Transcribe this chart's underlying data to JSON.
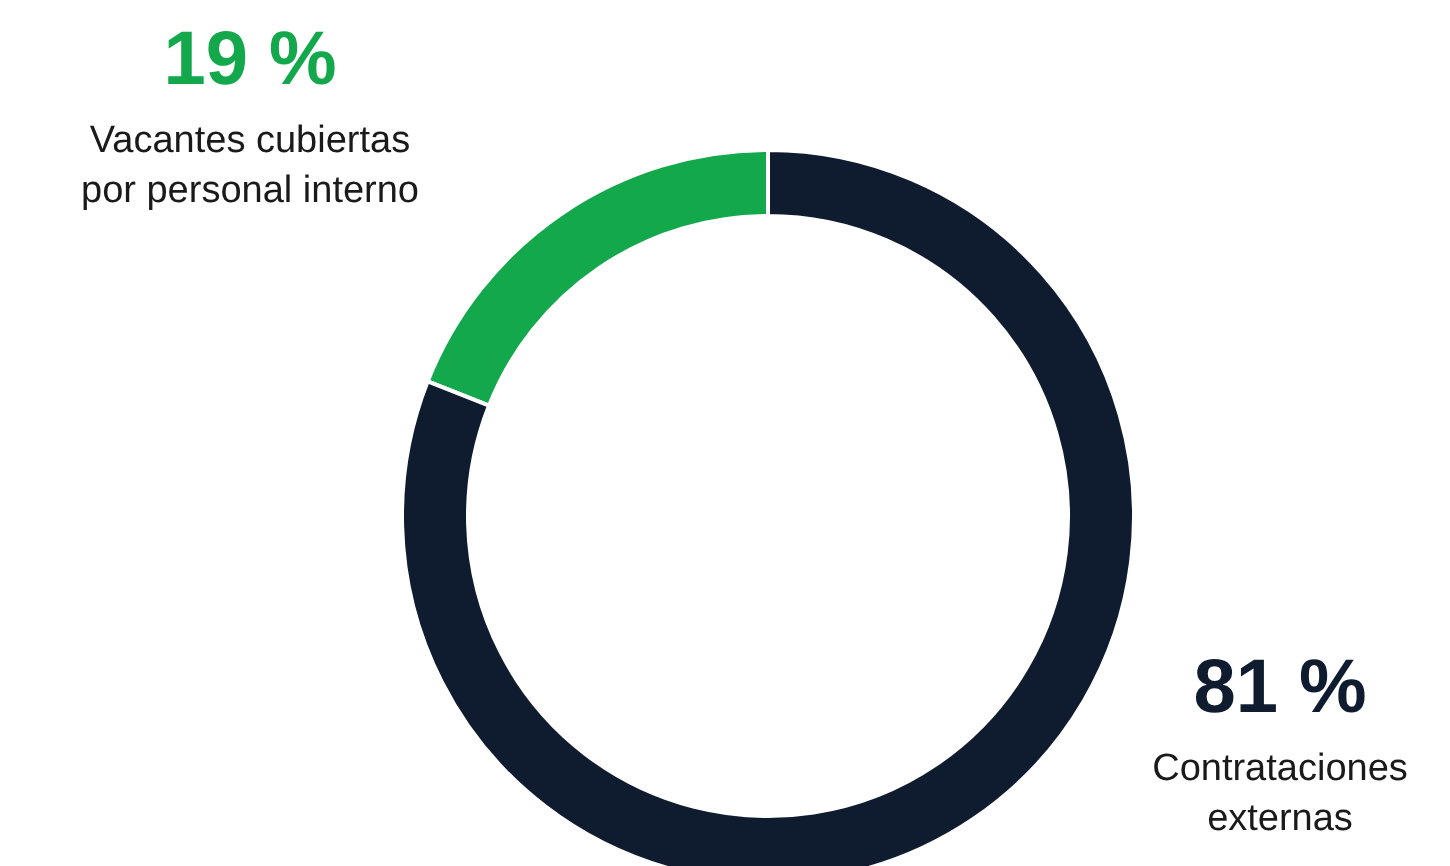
{
  "chart_data": {
    "type": "donut",
    "categories": [
      "Vacantes cubiertas por personal interno",
      "Contrataciones externas"
    ],
    "values": [
      19,
      81
    ],
    "colors": [
      "#12a84b",
      "#0f1c30"
    ],
    "value_labels": [
      "19 %",
      "81 %"
    ]
  }
}
